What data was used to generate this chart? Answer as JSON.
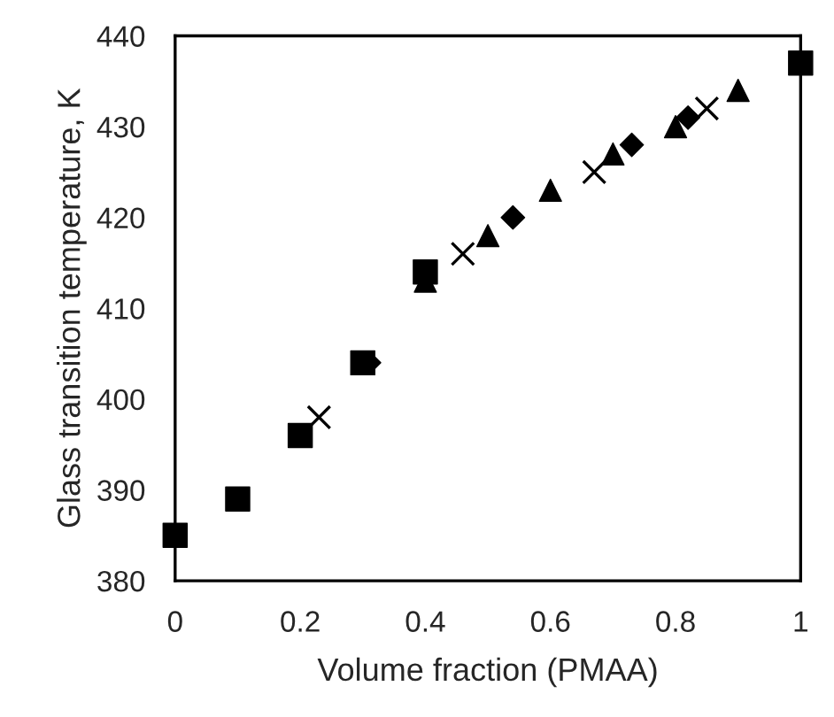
{
  "chart_data": {
    "type": "scatter",
    "xlabel": "Volume fraction (PMAA)",
    "ylabel": "Glass transition temperature, K",
    "xlim": [
      0,
      1
    ],
    "xticks": [
      0,
      0.2,
      0.4,
      0.6,
      0.8,
      1
    ],
    "ylim": [
      380,
      440
    ],
    "yticks": [
      380,
      390,
      400,
      410,
      420,
      430,
      440
    ],
    "grid": false,
    "legend": false,
    "series": [
      {
        "color": "#000000",
        "marker": "square",
        "x": [
          0,
          0.1,
          0.2,
          0.3,
          0.4,
          1
        ],
        "values": [
          385,
          389,
          396,
          404,
          414,
          437
        ]
      },
      {
        "color": "#000000",
        "marker": "triangle",
        "x": [
          0.4,
          0.5,
          0.6,
          0.7,
          0.8,
          0.9
        ],
        "values": [
          413,
          418,
          423,
          427,
          430,
          434
        ]
      },
      {
        "color": "#000000",
        "marker": "diamond",
        "x": [
          0.31,
          0.54,
          0.73,
          0.82
        ],
        "values": [
          404,
          420,
          428,
          431
        ]
      },
      {
        "color": "#000000",
        "marker": "cross",
        "x": [
          0.23,
          0.46,
          0.67,
          0.85
        ],
        "values": [
          398,
          416,
          425,
          432
        ]
      }
    ]
  }
}
